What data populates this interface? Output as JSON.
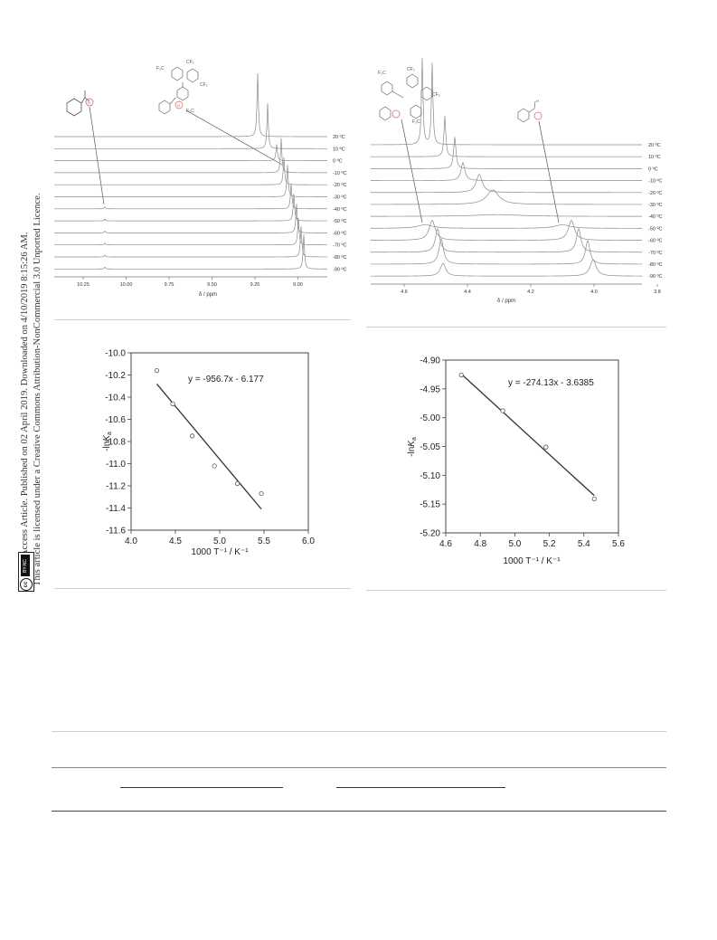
{
  "sidebar": {
    "line1": "Open Access Article. Published on 02 April 2019. Downloaded on 4/10/2019 8:15:26 AM.",
    "line2": "This article is licensed under a Creative Commons Attribution-NonCommercial 3.0 Unported Licence.",
    "badge_cc": "cc",
    "badge_text": "BY-NC"
  },
  "nmr_left": {
    "xlabel": "δ / ppm",
    "xticks": [
      "10.25",
      "10.00",
      "9.75",
      "9.50",
      "9.25",
      "9.00"
    ],
    "temps": [
      "20 ºC",
      "10 ºC",
      "0 ºC",
      "-10 ºC",
      "-20 ºC",
      "-30 ºC",
      "-40 ºC",
      "-50 ºC",
      "-60 ºC",
      "-70 ºC",
      "-80 ºC",
      "-90 ºC"
    ],
    "substituent": "F₃C",
    "cf3": "CF₃",
    "h_label": "H"
  },
  "nmr_right": {
    "xlabel": "δ / ppm",
    "xticks": [
      "4.6",
      "4.4",
      "4.2",
      "4.0",
      "3.8"
    ],
    "temps": [
      "20 ºC",
      "10 ºC",
      "0 ºC",
      "-10 ºC",
      "-20 ºC",
      "-30 ºC",
      "-40 ºC",
      "-50 ºC",
      "-60 ºC",
      "-70 ºC",
      "-80 ºC",
      "-90 ºC"
    ],
    "substituent": "F₃C",
    "cf3": "CF₃",
    "h_label": "H"
  },
  "chart_data": [
    {
      "type": "scatter",
      "xlabel": "1000 T⁻¹ / K⁻¹",
      "ylabel_main": "-ln",
      "ylabel_var": "K",
      "ylabel_sub": "a",
      "equation": "y = -956.7x - 6.177",
      "xlim": [
        4.0,
        6.0
      ],
      "ylim": [
        -11.6,
        -10.0
      ],
      "xticks": [
        "4.0",
        "4.5",
        "5.0",
        "5.5",
        "6.0"
      ],
      "yticks": [
        "-10.0",
        "-10.2",
        "-10.4",
        "-10.6",
        "-10.8",
        "-11.0",
        "-11.2",
        "-11.4",
        "-11.6"
      ],
      "x": [
        4.29,
        4.47,
        4.69,
        4.94,
        5.2,
        5.47
      ],
      "y": [
        -10.16,
        -10.46,
        -10.75,
        -11.02,
        -11.18,
        -11.27
      ],
      "fit": {
        "slope": -956.7,
        "intercept": -6.177
      }
    },
    {
      "type": "scatter",
      "xlabel": "1000 T⁻¹ / K⁻¹",
      "ylabel_main": "-ln",
      "ylabel_var": "K",
      "ylabel_sub": "a",
      "equation": "y = -274.13x - 3.6385",
      "xlim": [
        4.6,
        5.6
      ],
      "ylim": [
        -5.2,
        -4.9
      ],
      "xticks": [
        "4.6",
        "4.8",
        "5.0",
        "5.2",
        "5.4",
        "5.6"
      ],
      "yticks": [
        "-4.90",
        "-4.95",
        "-5.00",
        "-5.05",
        "-5.10",
        "-5.15",
        "-5.20"
      ],
      "x": [
        4.69,
        4.93,
        5.18,
        5.46
      ],
      "y": [
        -4.926,
        -4.988,
        -5.051,
        -5.141
      ],
      "fit": {
        "slope": -274.13,
        "intercept": -3.6385
      }
    }
  ]
}
